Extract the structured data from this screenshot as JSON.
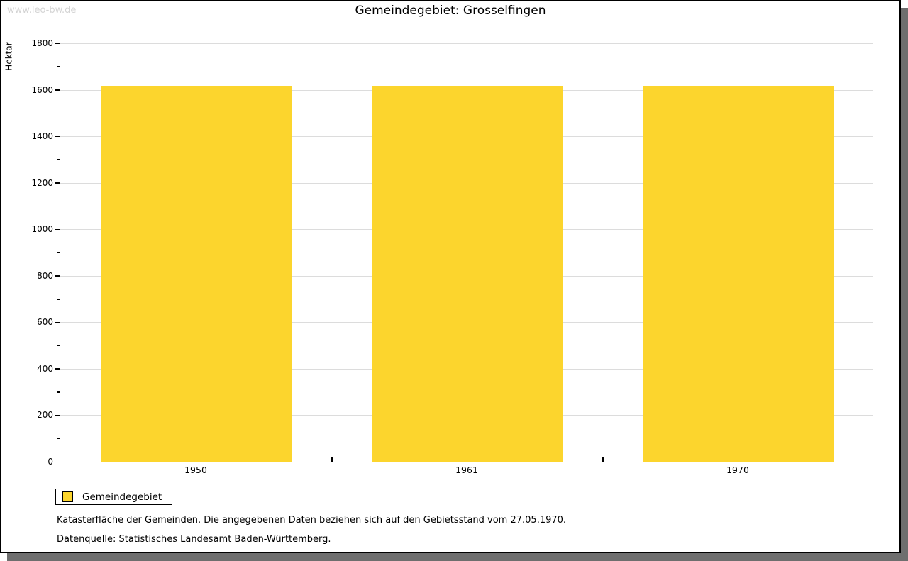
{
  "watermark": "www.leo-bw.de",
  "title": "Gemeindegebiet: Grosselfingen",
  "chart_data": {
    "type": "bar",
    "title": "Gemeindegebiet: Grosselfingen",
    "categories": [
      "1950",
      "1961",
      "1970"
    ],
    "series": [
      {
        "name": "Gemeindegebiet",
        "values": [
          1616,
          1616,
          1616
        ]
      }
    ],
    "xlabel": "",
    "ylabel": "Hektar",
    "ylim": [
      0,
      1800
    ],
    "ytick_step": 200,
    "minor_tick_step": 100,
    "grid": true,
    "legend_position": "bottom-left",
    "bar_color": "#fcd52d",
    "grid_color": "#dcdcdc",
    "axis_color": "#000000"
  },
  "legend": {
    "items": [
      {
        "label": "Gemeindegebiet",
        "color": "#fcd52d"
      }
    ]
  },
  "footnotes": {
    "line1": "Katasterfläche der Gemeinden. Die angegebenen Daten beziehen sich auf den Gebietsstand vom 27.05.1970.",
    "line2": "Datenquelle: Statistisches Landesamt Baden-Württemberg."
  }
}
